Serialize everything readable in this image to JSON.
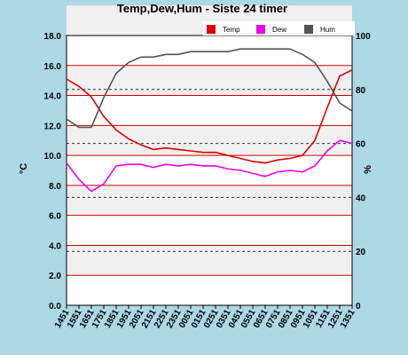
{
  "chart_data": {
    "type": "line",
    "title": "Temp,Dew,Hum - Siste 24 timer",
    "ylabel_left": "°C",
    "ylabel_right": "%",
    "ylim_left": [
      0,
      18
    ],
    "ylim_right": [
      0,
      100
    ],
    "y_ticks_left": [
      "0.0",
      "2.0",
      "4.0",
      "6.0",
      "8.0",
      "10.0",
      "12.0",
      "14.0",
      "16.0",
      "18.0"
    ],
    "y_ticks_right": [
      "0",
      "20",
      "40",
      "60",
      "80",
      "100"
    ],
    "categories": [
      "1451",
      "1551",
      "1651",
      "1751",
      "1851",
      "1951",
      "2051",
      "2151",
      "2251",
      "2351",
      "0051",
      "0151",
      "0251",
      "0351",
      "0451",
      "0551",
      "0651",
      "0751",
      "0851",
      "0951",
      "1051",
      "1151",
      "1251",
      "1351"
    ],
    "series": [
      {
        "name": "Temp",
        "axis": "left",
        "color": "#dd0000",
        "values": [
          15.1,
          14.6,
          13.9,
          12.6,
          11.7,
          11.1,
          10.7,
          10.4,
          10.5,
          10.4,
          10.3,
          10.2,
          10.2,
          10.0,
          9.8,
          9.6,
          9.5,
          9.7,
          9.8,
          10.0,
          11.0,
          13.2,
          15.3,
          15.7
        ]
      },
      {
        "name": "Dew",
        "axis": "left",
        "color": "#ee00ee",
        "values": [
          9.5,
          8.4,
          7.6,
          8.1,
          9.3,
          9.4,
          9.4,
          9.2,
          9.4,
          9.3,
          9.4,
          9.3,
          9.3,
          9.1,
          9.0,
          8.8,
          8.6,
          8.9,
          9.0,
          8.9,
          9.3,
          10.3,
          11.0,
          10.8
        ]
      },
      {
        "name": "Hum",
        "axis": "right",
        "color": "#555555",
        "values": [
          69,
          66,
          66,
          77,
          86,
          90,
          92,
          92,
          93,
          93,
          94,
          94,
          94,
          94,
          95,
          95,
          95,
          95,
          95,
          93,
          90,
          83,
          75,
          72
        ]
      }
    ],
    "grid": true,
    "legend_position": "top-right"
  }
}
